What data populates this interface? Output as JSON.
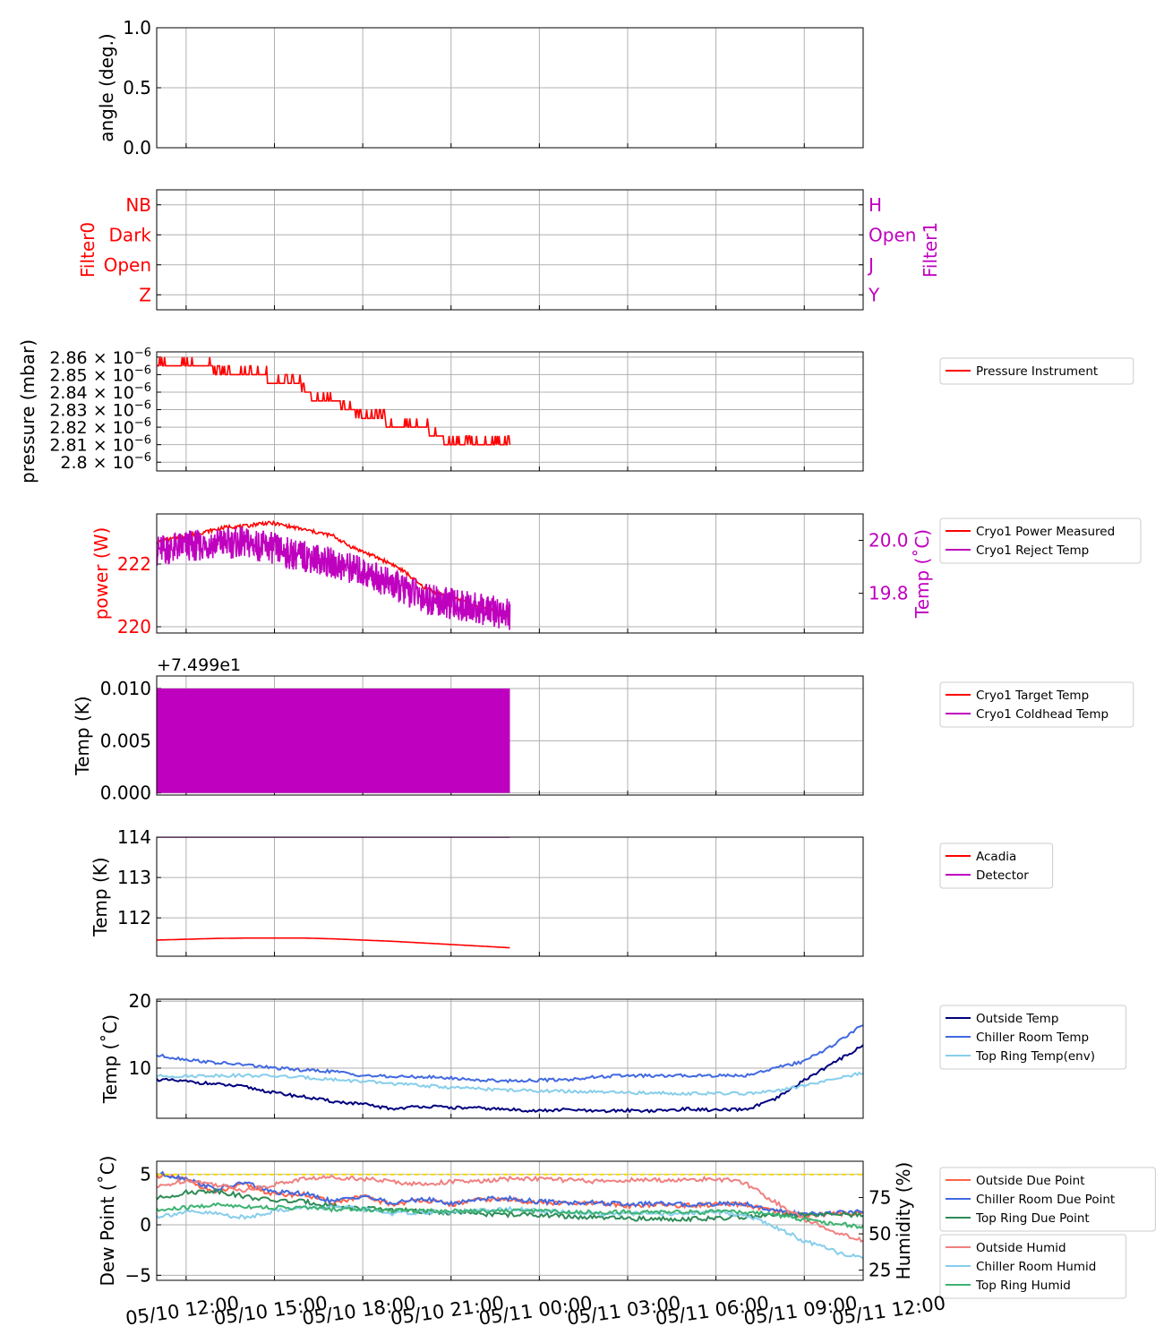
{
  "chart_data": [
    {
      "type": "line",
      "ylabel": "angle (deg.)",
      "ylim": [
        0,
        1
      ],
      "yticks": [
        "0.0",
        "0.5",
        "1.0"
      ],
      "ytick_values": [
        0,
        0.5,
        1
      ],
      "grid": true,
      "series": []
    },
    {
      "type": "line",
      "ylabel": "Filter0",
      "ylabel_right": "Filter1",
      "yticks": [
        "Z",
        "Open",
        "Dark",
        "NB"
      ],
      "yticks_right": [
        "Y",
        "J",
        "Open",
        "H"
      ],
      "ylim": [
        -0.5,
        3.5
      ],
      "grid": true,
      "series": []
    },
    {
      "type": "line",
      "ylabel": "pressure (mbar)",
      "ylim": [
        2.795e-06,
        2.863e-06
      ],
      "yticks": [
        "2.86",
        "2.85",
        "2.84",
        "2.83",
        "2.82",
        "2.81",
        "2.8"
      ],
      "ytick_values": [
        2.86e-06,
        2.85e-06,
        2.84e-06,
        2.83e-06,
        2.82e-06,
        2.81e-06,
        2.8e-06
      ],
      "ytick_suffix": "× 10",
      "ytick_exponent": "−6",
      "legend": [
        "Pressure Instrument"
      ],
      "legend_loc": "outside-right",
      "grid": true,
      "series": [
        {
          "name": "Pressure Instrument",
          "color": "#ff0000",
          "x": [
            0,
            0.5,
            1,
            1.7,
            2.1,
            2.5,
            3,
            3.5,
            4,
            4.3,
            4.8,
            5,
            5.5,
            6,
            6.5,
            7,
            7.5,
            8,
            8.5,
            9,
            9.5,
            10,
            10.5,
            11,
            11.5,
            12
          ],
          "y": [
            2.855e-06,
            2.855e-06,
            2.855e-06,
            2.855e-06,
            2.85e-06,
            2.85e-06,
            2.85e-06,
            2.85e-06,
            2.845e-06,
            2.845e-06,
            2.845e-06,
            2.84e-06,
            2.835e-06,
            2.835e-06,
            2.83e-06,
            2.825e-06,
            2.825e-06,
            2.82e-06,
            2.82e-06,
            2.82e-06,
            2.815e-06,
            2.81e-06,
            2.81e-06,
            2.81e-06,
            2.81e-06,
            2.81e-06
          ]
        }
      ]
    },
    {
      "type": "line",
      "ylabel": "power (W)",
      "ylabel_right": "Temp (˚C)",
      "ylim": [
        219.8,
        223.6
      ],
      "yticks": [
        "220",
        "222"
      ],
      "ytick_values": [
        220,
        222
      ],
      "ylim_right": [
        19.65,
        20.1
      ],
      "yticks_right": [
        "19.8",
        "20.0"
      ],
      "ytick_values_right": [
        19.8,
        20.0
      ],
      "legend": [
        "Cryo1 Power Measured",
        "Cryo1 Reject Temp"
      ],
      "legend_loc": "outside-right",
      "grid": true,
      "series": [
        {
          "name": "Cryo1 Power Measured",
          "color": "#ff0000",
          "axis": "left",
          "x": [
            0,
            0.5,
            1,
            1.5,
            2,
            2.5,
            3,
            3.5,
            4,
            4.5,
            5,
            5.5,
            6,
            6.5,
            7,
            7.5,
            8,
            8.5,
            9,
            9.5,
            10,
            10.5,
            11,
            11.5,
            12
          ],
          "y": [
            222.7,
            222.8,
            222.9,
            223.0,
            223.1,
            223.2,
            223.2,
            223.3,
            223.3,
            223.2,
            223.1,
            223.0,
            222.9,
            222.6,
            222.4,
            222.2,
            222.0,
            221.7,
            221.3,
            221.1,
            220.9,
            220.8,
            220.6,
            220.5,
            220.3
          ]
        },
        {
          "name": "Cryo1 Reject Temp",
          "color": "#bf00bf",
          "axis": "right",
          "x": [
            0,
            0.5,
            1,
            1.5,
            2,
            2.5,
            3,
            3.5,
            4,
            4.5,
            5,
            5.5,
            6,
            6.5,
            7,
            7.5,
            8,
            8.5,
            9,
            9.5,
            10,
            10.5,
            11,
            11.5,
            12
          ],
          "y": [
            19.96,
            19.97,
            19.98,
            19.98,
            19.99,
            19.99,
            19.99,
            19.98,
            19.97,
            19.95,
            19.94,
            19.93,
            19.91,
            19.9,
            19.88,
            19.86,
            19.83,
            19.81,
            19.79,
            19.77,
            19.76,
            19.75,
            19.74,
            19.73,
            19.72
          ]
        }
      ]
    },
    {
      "type": "line",
      "ylabel": "Temp (K)",
      "offset_label": "+7.499e1",
      "ylim": [
        -0.0002,
        0.0112
      ],
      "yticks": [
        "0.000",
        "0.005",
        "0.010"
      ],
      "ytick_values": [
        0,
        0.005,
        0.01
      ],
      "legend": [
        "Cryo1 Target Temp",
        "Cryo1 Coldhead Temp"
      ],
      "legend_loc": "outside-right",
      "grid": true,
      "series": [
        {
          "name": "Cryo1 Target Temp",
          "color": "#ff0000",
          "x": [
            0,
            12
          ],
          "y": [
            0.005,
            0.005
          ]
        },
        {
          "name": "Cryo1 Coldhead Temp",
          "color": "#bf00bf",
          "x": [
            0,
            12
          ],
          "y_band": [
            0,
            0.01
          ]
        }
      ]
    },
    {
      "type": "line",
      "ylabel": "Temp (K)",
      "ylim": [
        111.05,
        114.0
      ],
      "yticks": [
        "112",
        "113",
        "114"
      ],
      "ytick_values": [
        112,
        113,
        114
      ],
      "legend": [
        "Acadia",
        "Detector"
      ],
      "legend_loc": "outside-right",
      "grid": true,
      "series": [
        {
          "name": "Acadia",
          "color": "#ff0000",
          "x": [
            0,
            1,
            2,
            3,
            4,
            5,
            6,
            7,
            8,
            9,
            10,
            11,
            12
          ],
          "y": [
            111.45,
            111.47,
            111.49,
            111.5,
            111.5,
            111.5,
            111.48,
            111.45,
            111.42,
            111.38,
            111.34,
            111.3,
            111.26
          ]
        },
        {
          "name": "Detector",
          "color": "#bf00bf",
          "x": [
            0,
            12
          ],
          "y": [
            114.0,
            114.0
          ]
        }
      ]
    },
    {
      "type": "line",
      "ylabel": "Temp (˚C)",
      "ylim": [
        2.5,
        20.3
      ],
      "yticks": [
        "10",
        "20"
      ],
      "ytick_values": [
        10,
        20
      ],
      "legend": [
        "Outside Temp",
        "Chiller Room Temp",
        "Top Ring Temp(env)"
      ],
      "legend_loc": "outside-right",
      "grid": true,
      "series": [
        {
          "name": "Outside Temp",
          "color": "#00007f",
          "x": [
            0,
            1,
            2,
            3,
            4,
            5,
            6,
            7,
            8,
            9,
            10,
            11,
            12,
            13,
            14,
            15,
            16,
            17,
            18,
            19,
            20,
            21,
            22,
            23,
            24
          ],
          "y": [
            8.3,
            8.0,
            7.6,
            7.2,
            6.3,
            5.7,
            5.0,
            4.6,
            3.9,
            4.3,
            4.1,
            4.0,
            3.8,
            3.6,
            3.8,
            3.5,
            3.7,
            3.6,
            3.9,
            3.7,
            3.8,
            5.3,
            8.2,
            10.8,
            13.4
          ]
        },
        {
          "name": "Chiller Room Temp",
          "color": "#4169e1",
          "x": [
            0,
            1,
            2,
            3,
            4,
            5,
            6,
            7,
            8,
            9,
            10,
            11,
            12,
            13,
            14,
            15,
            16,
            17,
            18,
            19,
            20,
            21,
            22,
            23,
            24
          ],
          "y": [
            11.9,
            11.3,
            10.8,
            10.5,
            10.0,
            9.7,
            9.5,
            8.9,
            8.7,
            8.7,
            8.5,
            8.2,
            8.1,
            8.2,
            8.3,
            8.7,
            8.9,
            8.8,
            8.9,
            8.9,
            8.9,
            10.0,
            11.0,
            13.5,
            16.5
          ]
        },
        {
          "name": "Top Ring Temp(env)",
          "color": "#87ceeb",
          "x": [
            0,
            1,
            2,
            3,
            4,
            5,
            6,
            7,
            8,
            9,
            10,
            11,
            12,
            13,
            14,
            15,
            16,
            17,
            18,
            19,
            20,
            21,
            22,
            23,
            24
          ],
          "y": [
            8.8,
            8.8,
            8.9,
            8.9,
            8.8,
            8.6,
            8.3,
            8.0,
            7.7,
            7.4,
            7.1,
            6.9,
            6.7,
            6.6,
            6.5,
            6.4,
            6.3,
            6.3,
            6.2,
            6.2,
            6.2,
            6.5,
            7.4,
            8.3,
            9.3
          ]
        }
      ]
    },
    {
      "type": "line",
      "ylabel": "Dew Point (˚C)",
      "ylabel_right": "Humidity (%)",
      "ylim": [
        -5.5,
        6.3
      ],
      "yticks": [
        "−5",
        "0",
        "5"
      ],
      "ytick_values": [
        -5,
        0,
        5
      ],
      "ylim_right": [
        18,
        100
      ],
      "yticks_right": [
        "25",
        "50",
        "75"
      ],
      "ytick_values_right": [
        25,
        50,
        75
      ],
      "legend": [
        "Outside Due Point",
        "Chiller Room Due Point",
        "Top Ring Due Point",
        "Outside Humid",
        "Chiller Room Humid",
        "Top Ring Humid"
      ],
      "legend_loc": "outside-right",
      "grid": true,
      "series": [
        {
          "name": "Outside Due Point",
          "color": "#ff6347",
          "axis": "left",
          "x": [
            0,
            1,
            2,
            3,
            4,
            5,
            6,
            7,
            8,
            9,
            10,
            11,
            12,
            13,
            14,
            15,
            16,
            17,
            18,
            19,
            20,
            21,
            22,
            23,
            24
          ],
          "y": [
            4.9,
            4.5,
            3.2,
            4.0,
            3.0,
            3.0,
            2.2,
            2.8,
            2.0,
            2.5,
            2.0,
            2.5,
            2.5,
            2.2,
            2.1,
            2.1,
            1.9,
            2.0,
            1.9,
            2.0,
            2.0,
            1.3,
            0.9,
            1.1,
            1.2
          ]
        },
        {
          "name": "Chiller Room Due Point",
          "color": "#4169e1",
          "axis": "left",
          "x": [
            0,
            1,
            2,
            3,
            4,
            5,
            6,
            7,
            8,
            9,
            10,
            11,
            12,
            13,
            14,
            15,
            16,
            17,
            18,
            19,
            20,
            21,
            22,
            23,
            24
          ],
          "y": [
            5.1,
            4.6,
            3.5,
            4.2,
            3.2,
            3.1,
            2.3,
            2.9,
            2.1,
            2.6,
            2.1,
            2.6,
            2.6,
            2.3,
            2.2,
            2.2,
            2.0,
            2.1,
            2.0,
            2.1,
            2.1,
            1.4,
            1.0,
            1.2,
            1.3
          ]
        },
        {
          "name": "Top Ring Due Point",
          "color": "#2e8b57",
          "axis": "left",
          "x": [
            0,
            1,
            2,
            3,
            4,
            5,
            6,
            7,
            8,
            9,
            10,
            11,
            12,
            13,
            14,
            15,
            16,
            17,
            18,
            19,
            20,
            21,
            22,
            23,
            24
          ],
          "y": [
            2.6,
            3.2,
            3.4,
            2.8,
            2.4,
            2.3,
            1.9,
            1.6,
            1.5,
            1.3,
            1.2,
            1.1,
            1.0,
            1.0,
            0.8,
            0.7,
            0.6,
            0.6,
            0.6,
            0.6,
            0.8,
            0.9,
            1.0,
            1.0,
            1.0
          ]
        },
        {
          "name": "Outside Humid",
          "color": "#f08080",
          "axis": "right",
          "x": [
            0,
            1,
            2,
            3,
            4,
            5,
            6,
            7,
            8,
            9,
            10,
            11,
            12,
            13,
            14,
            15,
            16,
            17,
            18,
            19,
            20,
            21,
            22,
            23,
            24
          ],
          "y": [
            82,
            87,
            84,
            80,
            84,
            88,
            89,
            88,
            86,
            84,
            86,
            86,
            88,
            88,
            87,
            86,
            87,
            87,
            87,
            88,
            85,
            72,
            60,
            52,
            45
          ]
        },
        {
          "name": "Chiller Room Humid",
          "color": "#87ceeb",
          "axis": "right",
          "x": [
            0,
            1,
            2,
            3,
            4,
            5,
            6,
            7,
            8,
            9,
            10,
            11,
            12,
            13,
            14,
            15,
            16,
            17,
            18,
            19,
            20,
            21,
            22,
            23,
            24
          ],
          "y": [
            62,
            65,
            64,
            61,
            66,
            68,
            68,
            67,
            64,
            65,
            65,
            66,
            67,
            66,
            65,
            64,
            64,
            64,
            64,
            65,
            63,
            55,
            45,
            38,
            33
          ]
        },
        {
          "name": "Top Ring Humid",
          "color": "#3cb371",
          "axis": "right",
          "x": [
            0,
            1,
            2,
            3,
            4,
            5,
            6,
            7,
            8,
            9,
            10,
            11,
            12,
            13,
            14,
            15,
            16,
            17,
            18,
            19,
            20,
            21,
            22,
            23,
            24
          ],
          "y": [
            66,
            68,
            70,
            69,
            68,
            68,
            67,
            67,
            66,
            66,
            66,
            66,
            66,
            66,
            65,
            65,
            65,
            65,
            65,
            65,
            65,
            63,
            60,
            57,
            55
          ]
        },
        {
          "name": "",
          "color": "#ffd700",
          "axis": "left",
          "dashed": true,
          "x": [
            0,
            24
          ],
          "y": [
            5.0,
            5.0
          ]
        }
      ]
    }
  ],
  "x_axis": {
    "ticks": [
      "05/10 12:00",
      "05/10 15:00",
      "05/10 18:00",
      "05/10 21:00",
      "05/11 00:00",
      "05/11 03:00",
      "05/11 06:00",
      "05/11 09:00",
      "05/11 12:00"
    ],
    "note_units": "hours from 05/10 11:00",
    "tick_hours": [
      1,
      4,
      7,
      10,
      13,
      16,
      19,
      22,
      25
    ],
    "xlim_hours": [
      0,
      24
    ]
  },
  "colors": {
    "red": "#ff0000",
    "magenta": "#bf00bf",
    "grid": "#b0b0b0"
  }
}
